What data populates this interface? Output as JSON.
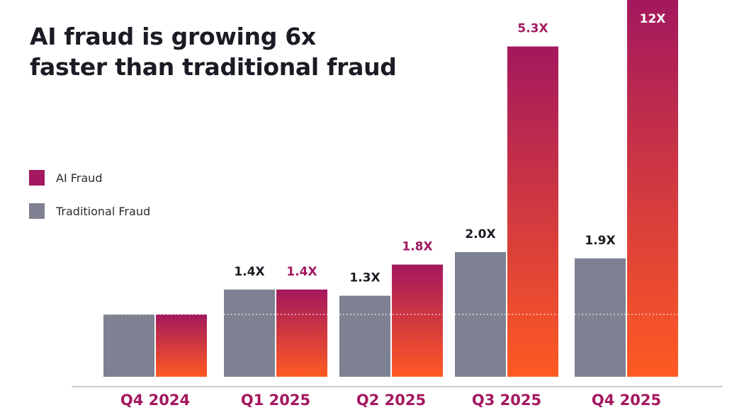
{
  "title_lines": [
    "AI fraud is growing 6x",
    "faster than traditional fraud"
  ],
  "colors": {
    "traditional": "#7e8191",
    "ai_top": "#a3185e",
    "ai_bottom": "#ff5a22",
    "ai_label": "#a3185e",
    "traditional_label": "#1b1b24",
    "category_label": "#a3185e",
    "axis": "#b9b9c4",
    "baseline_dots": "#ffffff"
  },
  "legend": [
    {
      "key": "ai",
      "label": "AI Fraud",
      "swatch": "magenta-square"
    },
    {
      "key": "traditional",
      "label": "Traditional Fraud",
      "swatch": "gray-square"
    }
  ],
  "chart_data": {
    "type": "bar",
    "title": "AI fraud is growing 6x faster than traditional fraud",
    "categories": [
      "Q4 2024",
      "Q1 2025",
      "Q2 2025",
      "Q3 2025",
      "Q4 2025"
    ],
    "series": [
      {
        "name": "Traditional Fraud",
        "values": [
          1.0,
          1.4,
          1.3,
          2.0,
          1.9
        ],
        "labels": [
          "",
          "1.4X",
          "1.3X",
          "2.0X",
          "1.9X"
        ]
      },
      {
        "name": "AI Fraud",
        "values": [
          1.0,
          1.4,
          1.8,
          5.3,
          12.0
        ],
        "labels": [
          "",
          "1.4X",
          "1.8X",
          "5.3X",
          "12X"
        ]
      }
    ],
    "xlabel": "",
    "ylabel": "",
    "reference_line": 1.0,
    "legend_position": "left",
    "grid": false
  }
}
